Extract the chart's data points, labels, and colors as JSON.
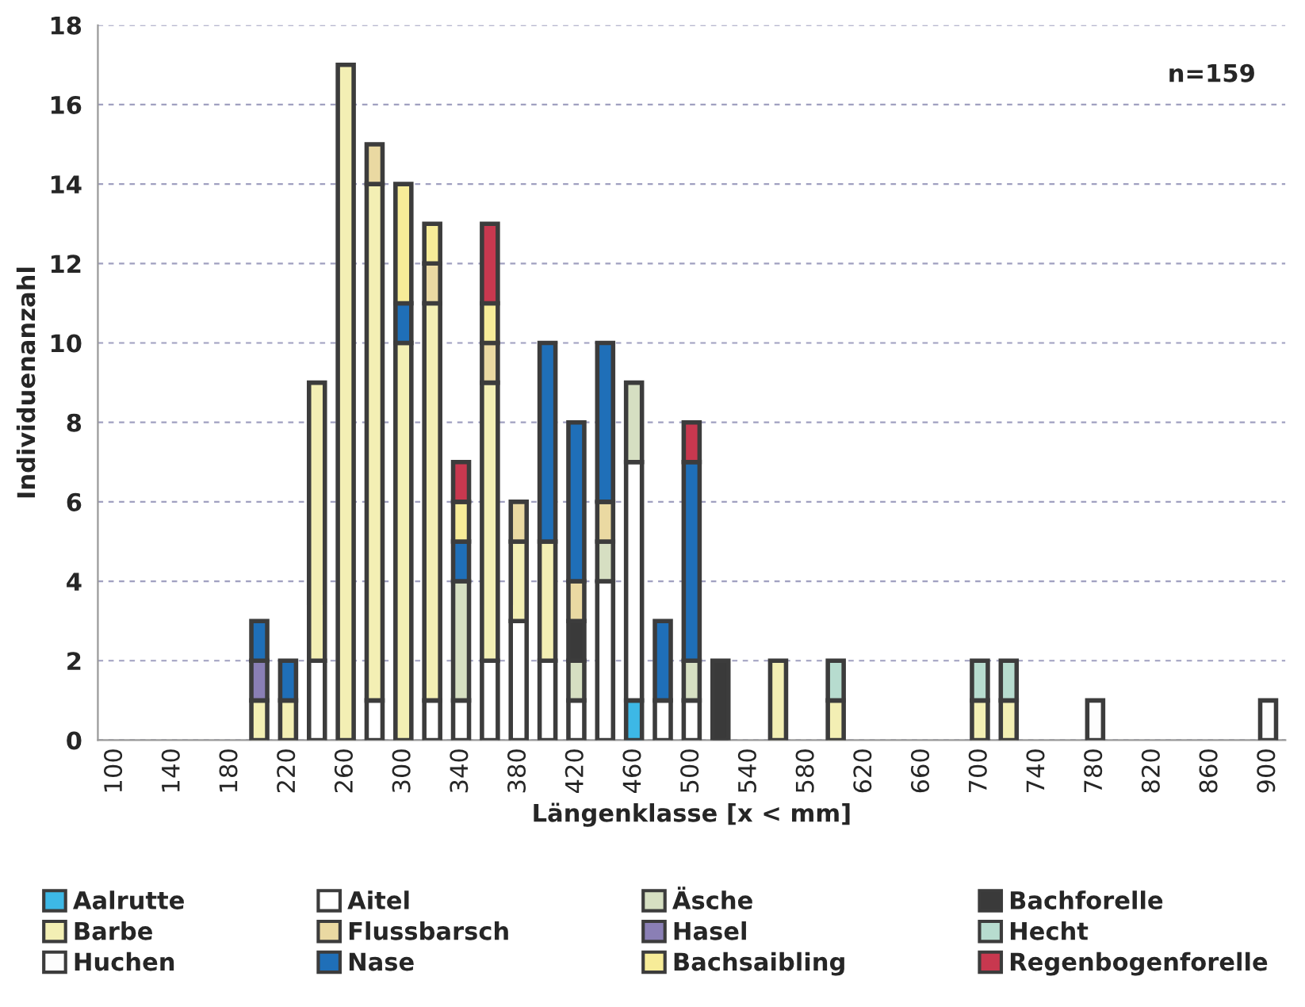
{
  "chart_data": {
    "type": "bar",
    "stacked": true,
    "ylabel": "Individuenanzahl",
    "xlabel": "Längenklasse [x < mm]",
    "annotations": [
      "n=159"
    ],
    "categories": [
      "100",
      null,
      "140",
      null,
      "180",
      null,
      "220",
      null,
      "260",
      null,
      "300",
      null,
      "340",
      null,
      "380",
      null,
      "420",
      null,
      "460",
      null,
      "500",
      null,
      "540",
      null,
      "580",
      null,
      "620",
      null,
      "660",
      null,
      "700",
      null,
      "740",
      null,
      "780",
      null,
      "820",
      null,
      "860",
      null,
      "900"
    ],
    "ylim": [
      0,
      18
    ],
    "yticks": [
      0,
      2,
      4,
      6,
      8,
      10,
      12,
      14,
      16,
      18
    ],
    "grid": "y",
    "legend": "bottom",
    "series": [
      {
        "name": "Aalrutte",
        "color": "#3db8e6",
        "values": [
          null,
          null,
          null,
          null,
          null,
          null,
          null,
          null,
          null,
          null,
          null,
          null,
          null,
          null,
          null,
          null,
          null,
          null,
          1,
          null,
          null,
          null,
          null,
          null,
          null,
          null,
          null,
          null,
          null,
          null,
          null,
          null,
          null,
          null,
          null,
          null,
          null,
          null,
          null,
          null,
          null
        ]
      },
      {
        "name": "Aitel",
        "color": "#ffffff",
        "values": [
          null,
          null,
          null,
          null,
          null,
          null,
          null,
          2,
          null,
          1,
          null,
          1,
          1,
          2,
          3,
          2,
          1,
          4,
          6,
          1,
          1,
          null,
          null,
          null,
          null,
          null,
          null,
          null,
          null,
          null,
          null,
          null,
          null,
          null,
          null,
          null,
          null,
          null,
          null,
          null,
          null
        ]
      },
      {
        "name": "Äsche",
        "color": "#d6dfc2",
        "values": [
          null,
          null,
          null,
          null,
          null,
          null,
          null,
          null,
          null,
          null,
          null,
          null,
          3,
          null,
          null,
          null,
          1,
          1,
          2,
          null,
          1,
          null,
          null,
          null,
          null,
          null,
          null,
          null,
          null,
          null,
          null,
          null,
          null,
          null,
          null,
          null,
          null,
          null,
          null,
          null,
          null
        ]
      },
      {
        "name": "Bachforelle",
        "color": "#3a3a3a",
        "values": [
          null,
          null,
          null,
          null,
          null,
          null,
          null,
          null,
          null,
          null,
          null,
          null,
          null,
          null,
          null,
          null,
          1,
          null,
          null,
          null,
          null,
          2,
          null,
          null,
          null,
          null,
          null,
          null,
          null,
          null,
          null,
          null,
          null,
          null,
          null,
          null,
          null,
          null,
          null,
          null,
          null
        ]
      },
      {
        "name": "Barbe",
        "color": "#f3efb4",
        "values": [
          null,
          null,
          null,
          null,
          null,
          1,
          1,
          7,
          17,
          13,
          10,
          10,
          null,
          7,
          2,
          3,
          null,
          null,
          null,
          null,
          null,
          null,
          null,
          2,
          null,
          1,
          null,
          null,
          null,
          null,
          1,
          1,
          null,
          null,
          null,
          null,
          null,
          null,
          null,
          null,
          null
        ]
      },
      {
        "name": "Flussbarsch",
        "color": "#ead9a2",
        "values": [
          null,
          null,
          null,
          null,
          null,
          null,
          null,
          null,
          null,
          1,
          null,
          1,
          null,
          1,
          1,
          null,
          1,
          1,
          null,
          null,
          null,
          null,
          null,
          null,
          null,
          null,
          null,
          null,
          null,
          null,
          null,
          null,
          null,
          null,
          null,
          null,
          null,
          null,
          null,
          null,
          null
        ]
      },
      {
        "name": "Hasel",
        "color": "#8a7fb5",
        "values": [
          null,
          null,
          null,
          null,
          null,
          1,
          null,
          null,
          null,
          null,
          null,
          null,
          null,
          null,
          null,
          null,
          null,
          null,
          null,
          null,
          null,
          null,
          null,
          null,
          null,
          null,
          null,
          null,
          null,
          null,
          null,
          null,
          null,
          null,
          null,
          null,
          null,
          null,
          null,
          null,
          null
        ]
      },
      {
        "name": "Hecht",
        "color": "#b7dccf",
        "values": [
          null,
          null,
          null,
          null,
          null,
          null,
          null,
          null,
          null,
          null,
          null,
          null,
          null,
          null,
          null,
          null,
          null,
          null,
          null,
          null,
          null,
          null,
          null,
          null,
          null,
          1,
          null,
          null,
          null,
          null,
          1,
          1,
          null,
          null,
          null,
          null,
          null,
          null,
          null,
          null,
          null
        ]
      },
      {
        "name": "Huchen",
        "color": "#fdfdfd",
        "values": [
          null,
          null,
          null,
          null,
          null,
          null,
          null,
          null,
          null,
          null,
          null,
          null,
          null,
          null,
          null,
          null,
          null,
          null,
          null,
          null,
          null,
          null,
          null,
          null,
          null,
          null,
          null,
          null,
          null,
          null,
          null,
          null,
          null,
          null,
          1,
          null,
          null,
          null,
          null,
          null,
          1
        ]
      },
      {
        "name": "Nase",
        "color": "#1f6fb8",
        "values": [
          null,
          null,
          null,
          null,
          null,
          1,
          1,
          null,
          null,
          null,
          1,
          null,
          1,
          null,
          null,
          5,
          4,
          4,
          null,
          2,
          5,
          null,
          null,
          null,
          null,
          null,
          null,
          null,
          null,
          null,
          null,
          null,
          null,
          null,
          null,
          null,
          null,
          null,
          null,
          null,
          null
        ]
      },
      {
        "name": "Bachsaibling",
        "color": "#f7ec98",
        "values": [
          null,
          null,
          null,
          null,
          null,
          null,
          null,
          null,
          null,
          null,
          3,
          1,
          1,
          1,
          null,
          null,
          null,
          null,
          null,
          null,
          null,
          null,
          null,
          null,
          null,
          null,
          null,
          null,
          null,
          null,
          null,
          null,
          null,
          null,
          null,
          null,
          null,
          null,
          null,
          null,
          null
        ]
      },
      {
        "name": "Regenbogenforelle",
        "color": "#c8384f",
        "values": [
          null,
          null,
          null,
          null,
          null,
          null,
          null,
          null,
          null,
          null,
          null,
          null,
          1,
          2,
          null,
          null,
          null,
          null,
          null,
          null,
          1,
          null,
          null,
          null,
          null,
          null,
          null,
          null,
          null,
          null,
          null,
          null,
          null,
          null,
          null,
          null,
          null,
          null,
          null,
          null,
          null
        ]
      }
    ]
  }
}
